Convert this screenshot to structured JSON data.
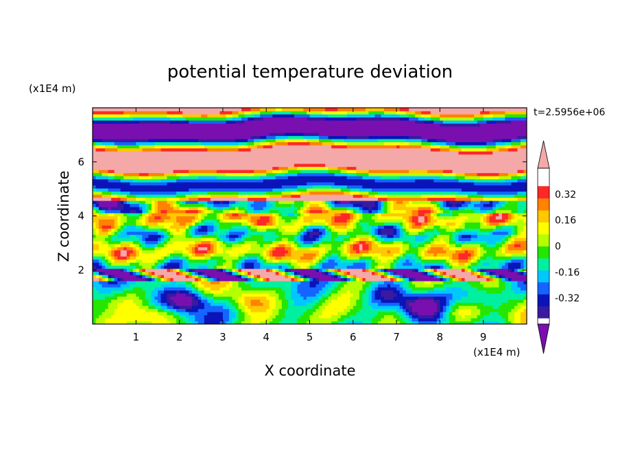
{
  "chart_data": {
    "type": "heatmap",
    "title": "potential temperature deviation",
    "xlabel": "X coordinate",
    "ylabel": "Z coordinate",
    "x_unit": "(x1E4 m)",
    "y_unit": "(x1E4 m)",
    "time_label": "t=2.5956e+06",
    "xlim": [
      0,
      10
    ],
    "ylim": [
      0,
      8
    ],
    "x_ticks": [
      1,
      2,
      3,
      4,
      5,
      6,
      7,
      8,
      9
    ],
    "y_ticks": [
      2,
      4,
      6
    ],
    "colorbar": {
      "levels": [
        -0.48,
        -0.4,
        -0.32,
        -0.24,
        -0.16,
        -0.08,
        0,
        0.08,
        0.16,
        0.24,
        0.32,
        0.4,
        0.48
      ],
      "labels": [
        "0.32",
        "0.16",
        "0",
        "-0.16",
        "-0.32"
      ],
      "label_values": [
        0.32,
        0.16,
        0,
        -0.16,
        -0.32
      ],
      "colors": [
        "#7a0fb0",
        "#3a1aa0",
        "#0a14b8",
        "#1464ff",
        "#00c8ff",
        "#00f0a0",
        "#24e600",
        "#b4ff00",
        "#ffff00",
        "#ffc800",
        "#ff8200",
        "#ff2828",
        "#f4a8a8"
      ],
      "extend": "both"
    },
    "regions": [
      {
        "z_range": [
          6.2,
          8.0
        ],
        "pattern": "alternating bands of -0.48 (purple) and +0.48 (pink)"
      },
      {
        "z_range": [
          4.5,
          6.2
        ],
        "pattern": "mostly +0.48 (pink) with purple streaks"
      },
      {
        "z_range": [
          2.0,
          4.5
        ],
        "pattern": "mixed, strong small-scale structure across all levels"
      },
      {
        "z_range": [
          1.7,
          2.0
        ],
        "pattern": "thin purple/pink layer"
      },
      {
        "z_range": [
          0.0,
          1.7
        ],
        "pattern": "convective cells, cyan-green background, dark blue and red/orange eddies"
      }
    ]
  }
}
